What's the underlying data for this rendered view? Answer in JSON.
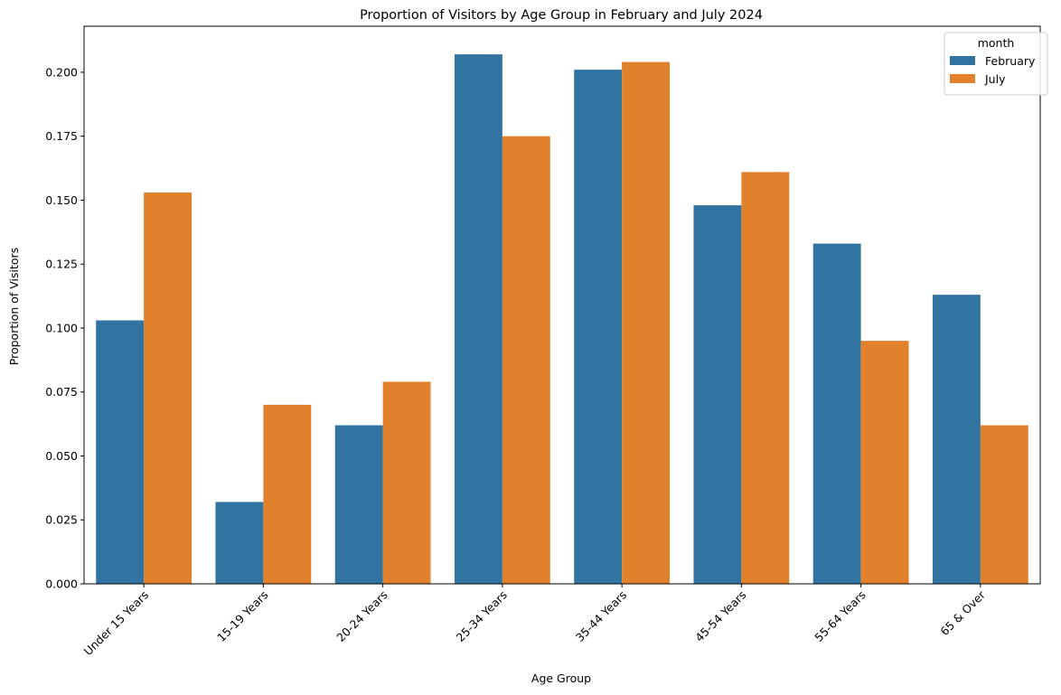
{
  "chart_data": {
    "type": "bar",
    "title": "Proportion of Visitors by Age Group in February and July 2024",
    "xlabel": "Age Group",
    "ylabel": "Proportion of Visitors",
    "categories": [
      "Under 15 Years",
      "15-19 Years",
      "20-24 Years",
      "25-34 Years",
      "35-44 Years",
      "45-54 Years",
      "55-64 Years",
      "65 & Over"
    ],
    "series": [
      {
        "name": "February",
        "color": "#3274a1",
        "values": [
          0.103,
          0.032,
          0.062,
          0.207,
          0.201,
          0.148,
          0.133,
          0.113
        ]
      },
      {
        "name": "July",
        "color": "#e1812c",
        "values": [
          0.153,
          0.07,
          0.079,
          0.175,
          0.204,
          0.161,
          0.095,
          0.062
        ]
      }
    ],
    "ylim": [
      0,
      0.218
    ],
    "yticks": [
      "0.000",
      "0.025",
      "0.050",
      "0.075",
      "0.100",
      "0.125",
      "0.150",
      "0.175",
      "0.200"
    ],
    "legend": {
      "title": "month",
      "placement": "top-right"
    },
    "grid": false
  }
}
